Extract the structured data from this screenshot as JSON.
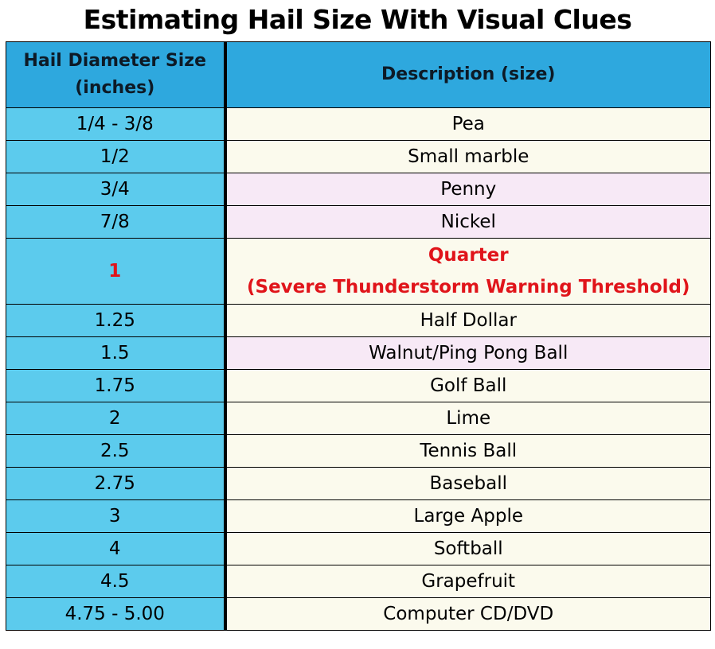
{
  "title": "Estimating Hail Size With Visual Clues",
  "table": {
    "headers": {
      "size_line1": "Hail Diameter Size",
      "size_line2": "(inches)",
      "description": "Description (size)"
    },
    "rows": [
      {
        "size": "1/4 - 3/8",
        "description": "Pea"
      },
      {
        "size": "1/2",
        "description": "Small marble"
      },
      {
        "size": "3/4",
        "description": "Penny"
      },
      {
        "size": "7/8",
        "description": "Nickel"
      },
      {
        "size": "1",
        "description": "Quarter",
        "note": "(Severe Thunderstorm Warning Threshold)"
      },
      {
        "size": "1.25",
        "description": "Half Dollar"
      },
      {
        "size": "1.5",
        "description": "Walnut/Ping Pong Ball"
      },
      {
        "size": "1.75",
        "description": "Golf Ball"
      },
      {
        "size": "2",
        "description": "Lime"
      },
      {
        "size": "2.5",
        "description": "Tennis Ball"
      },
      {
        "size": "2.75",
        "description": "Baseball"
      },
      {
        "size": "3",
        "description": "Large Apple"
      },
      {
        "size": "4",
        "description": "Softball"
      },
      {
        "size": "4.5",
        "description": "Grapefruit"
      },
      {
        "size": "4.75 - 5.00",
        "description": "Computer CD/DVD"
      }
    ]
  },
  "colors": {
    "header": "#2ea8de",
    "size_column": "#5ccbed",
    "row_cream": "#fbfaed",
    "row_lilac": "#f7e9f6",
    "threshold_text": "#e0141a"
  }
}
